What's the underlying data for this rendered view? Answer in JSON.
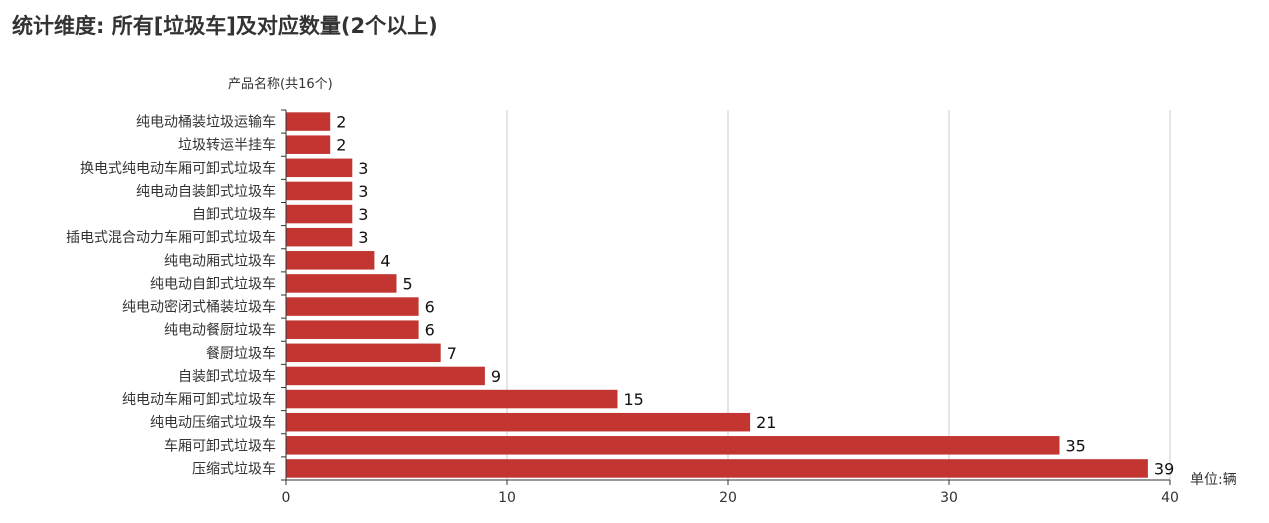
{
  "page": {
    "title": "统计维度: 所有[垃圾车]及对应数量(2个以上)"
  },
  "chart_data": {
    "type": "bar",
    "orientation": "horizontal",
    "ylabel": "产品名称(共16个)",
    "xlabel": "",
    "unit_label": "单位:辆",
    "categories": [
      "纯电动桶装垃圾运输车",
      "垃圾转运半挂车",
      "换电式纯电动车厢可卸式垃圾车",
      "纯电动自装卸式垃圾车",
      "自卸式垃圾车",
      "插电式混合动力车厢可卸式垃圾车",
      "纯电动厢式垃圾车",
      "纯电动自卸式垃圾车",
      "纯电动密闭式桶装垃圾车",
      "纯电动餐厨垃圾车",
      "餐厨垃圾车",
      "自装卸式垃圾车",
      "纯电动车厢可卸式垃圾车",
      "纯电动压缩式垃圾车",
      "车厢可卸式垃圾车",
      "压缩式垃圾车"
    ],
    "values": [
      2,
      2,
      3,
      3,
      3,
      3,
      4,
      5,
      6,
      6,
      7,
      9,
      15,
      21,
      35,
      39
    ],
    "xlim": [
      0,
      40
    ],
    "xticks": [
      0,
      10,
      20,
      30,
      40
    ],
    "grid": true,
    "legend": "none",
    "bar_color": "#c23531"
  }
}
